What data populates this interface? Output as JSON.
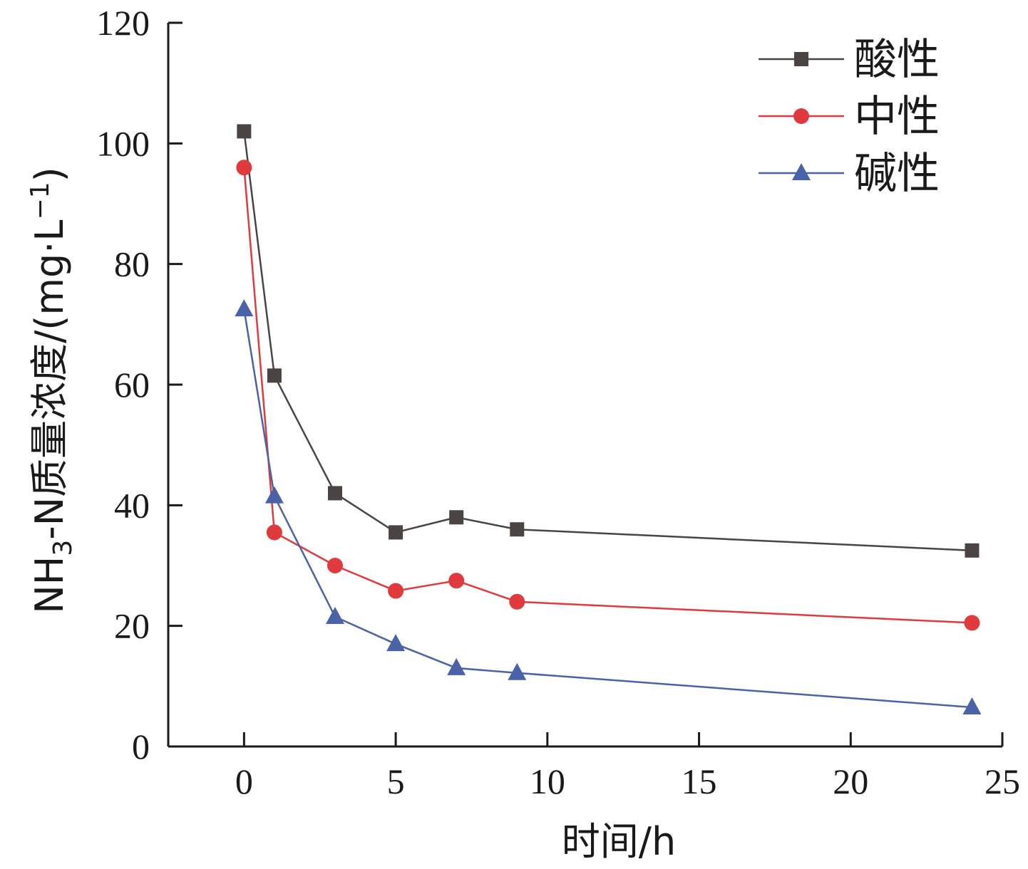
{
  "chart_data": {
    "type": "line",
    "xlabel": "时间/h",
    "ylabel": {
      "prefix": "NH",
      "sub": "3",
      "mid": "-N质量浓度/(mg·L",
      "sup": "−1",
      "suffix": ")"
    },
    "xlim": [
      -2.5,
      25
    ],
    "ylim": [
      0,
      120
    ],
    "x_ticks": [
      0,
      5,
      10,
      15,
      20,
      25
    ],
    "y_ticks": [
      0,
      20,
      40,
      60,
      80,
      100,
      120
    ],
    "x": [
      0,
      1,
      3,
      5,
      7,
      9,
      24
    ],
    "legend_position": "top-right",
    "grid": false,
    "series": [
      {
        "name": "酸性",
        "color": "#4a4542",
        "marker": "square",
        "values": [
          102.0,
          61.5,
          42.0,
          35.5,
          38.0,
          36.0,
          32.5
        ]
      },
      {
        "name": "中性",
        "color": "#e0393e",
        "marker": "circle",
        "values": [
          96.0,
          35.5,
          30.0,
          25.8,
          27.5,
          24.0,
          20.5
        ]
      },
      {
        "name": "碱性",
        "color": "#4a63a8",
        "marker": "triangle",
        "values": [
          72.5,
          41.5,
          21.5,
          17.0,
          13.0,
          12.2,
          6.5
        ]
      }
    ]
  }
}
